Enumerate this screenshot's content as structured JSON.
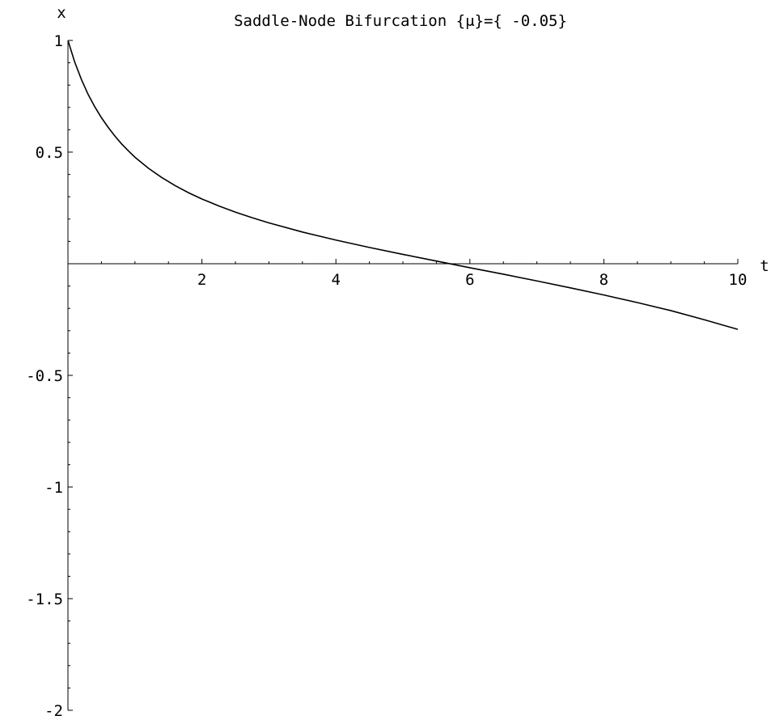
{
  "chart_data": {
    "type": "line",
    "title": "Saddle-Node Bifurcation {μ}={ -0.05}",
    "xlabel": "t",
    "ylabel": "x",
    "xlim": [
      0,
      10
    ],
    "ylim": [
      -2,
      1
    ],
    "x_ticks": [
      {
        "value": 2,
        "label": "2"
      },
      {
        "value": 4,
        "label": "4"
      },
      {
        "value": 6,
        "label": "6"
      },
      {
        "value": 8,
        "label": "8"
      },
      {
        "value": 10,
        "label": "10"
      }
    ],
    "y_ticks": [
      {
        "value": 1,
        "label": "1"
      },
      {
        "value": 0.5,
        "label": "0.5"
      },
      {
        "value": -0.5,
        "label": "-0.5"
      },
      {
        "value": -1,
        "label": "-1"
      },
      {
        "value": -1.5,
        "label": "-1.5"
      },
      {
        "value": -2,
        "label": "-2"
      }
    ],
    "x_minor_step": 0.5,
    "y_minor_step": 0.1,
    "grid": false,
    "legend": "none",
    "line_color": "#000000",
    "series": [
      {
        "x": [
          0,
          0.1,
          0.2,
          0.3,
          0.4,
          0.5,
          0.6,
          0.7,
          0.8,
          0.9,
          1.0,
          1.2,
          1.4,
          1.6,
          1.8,
          2.0,
          2.25,
          2.5,
          2.75,
          3.0,
          3.5,
          4.0,
          4.5,
          5.0,
          5.5,
          6.0,
          6.5,
          7.0,
          7.5,
          8.0,
          8.5,
          9.0,
          9.5,
          10.0
        ],
        "y": [
          1.0,
          0.904,
          0.826,
          0.759,
          0.703,
          0.654,
          0.611,
          0.572,
          0.537,
          0.506,
          0.477,
          0.428,
          0.386,
          0.35,
          0.318,
          0.29,
          0.259,
          0.231,
          0.206,
          0.183,
          0.142,
          0.106,
          0.073,
          0.042,
          0.012,
          -0.018,
          -0.047,
          -0.077,
          -0.108,
          -0.14,
          -0.174,
          -0.21,
          -0.251,
          -0.294
        ]
      }
    ]
  }
}
